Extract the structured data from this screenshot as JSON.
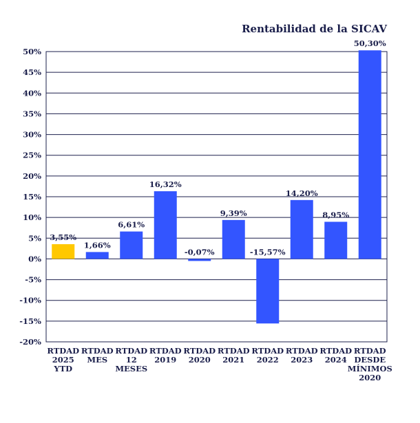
{
  "chart_data": {
    "type": "bar",
    "title": "Rentabilidad de la SICAV",
    "xlabel": "",
    "ylabel": "",
    "ylim": [
      -20,
      50
    ],
    "yticks": [
      "50%",
      "45%",
      "40%",
      "35%",
      "30%",
      "25%",
      "20%",
      "15%",
      "10%",
      "5%",
      "0%",
      "-5%",
      "-10%",
      "-15%",
      "-20%"
    ],
    "ytick_values": [
      50,
      45,
      40,
      35,
      30,
      25,
      20,
      15,
      10,
      5,
      0,
      -5,
      -10,
      -15,
      -20
    ],
    "grid": true,
    "categories": [
      [
        "RTDAD",
        "2025",
        "YTD"
      ],
      [
        "RTDAD",
        "MES"
      ],
      [
        "RTDAD",
        "12",
        "MESES"
      ],
      [
        "RTDAD",
        "2019"
      ],
      [
        "RTDAD",
        "2020"
      ],
      [
        "RTDAD",
        "2021"
      ],
      [
        "RTDAD",
        "2022"
      ],
      [
        "RTDAD",
        "2023"
      ],
      [
        "RTDAD",
        "2024"
      ],
      [
        "RTDAD",
        "DESDE",
        "MÍNIMOS",
        "2020"
      ]
    ],
    "values": [
      3.55,
      1.66,
      6.61,
      16.32,
      -0.07,
      9.39,
      -15.57,
      14.2,
      8.95,
      50.3
    ],
    "data_labels": [
      "3,55%",
      "1,66%",
      "6,61%",
      "16,32%",
      "-0,07%",
      "9,39%",
      "-15,57%",
      "14,20%",
      "8,95%",
      "50,30%"
    ],
    "colors": [
      "#FFC800",
      "#3355FF",
      "#3355FF",
      "#3355FF",
      "#3355FF",
      "#3355FF",
      "#3355FF",
      "#3355FF",
      "#3355FF",
      "#3355FF"
    ]
  },
  "style": {
    "text_color": "#1b1f4b",
    "grid_color": "#1b1f4b"
  }
}
